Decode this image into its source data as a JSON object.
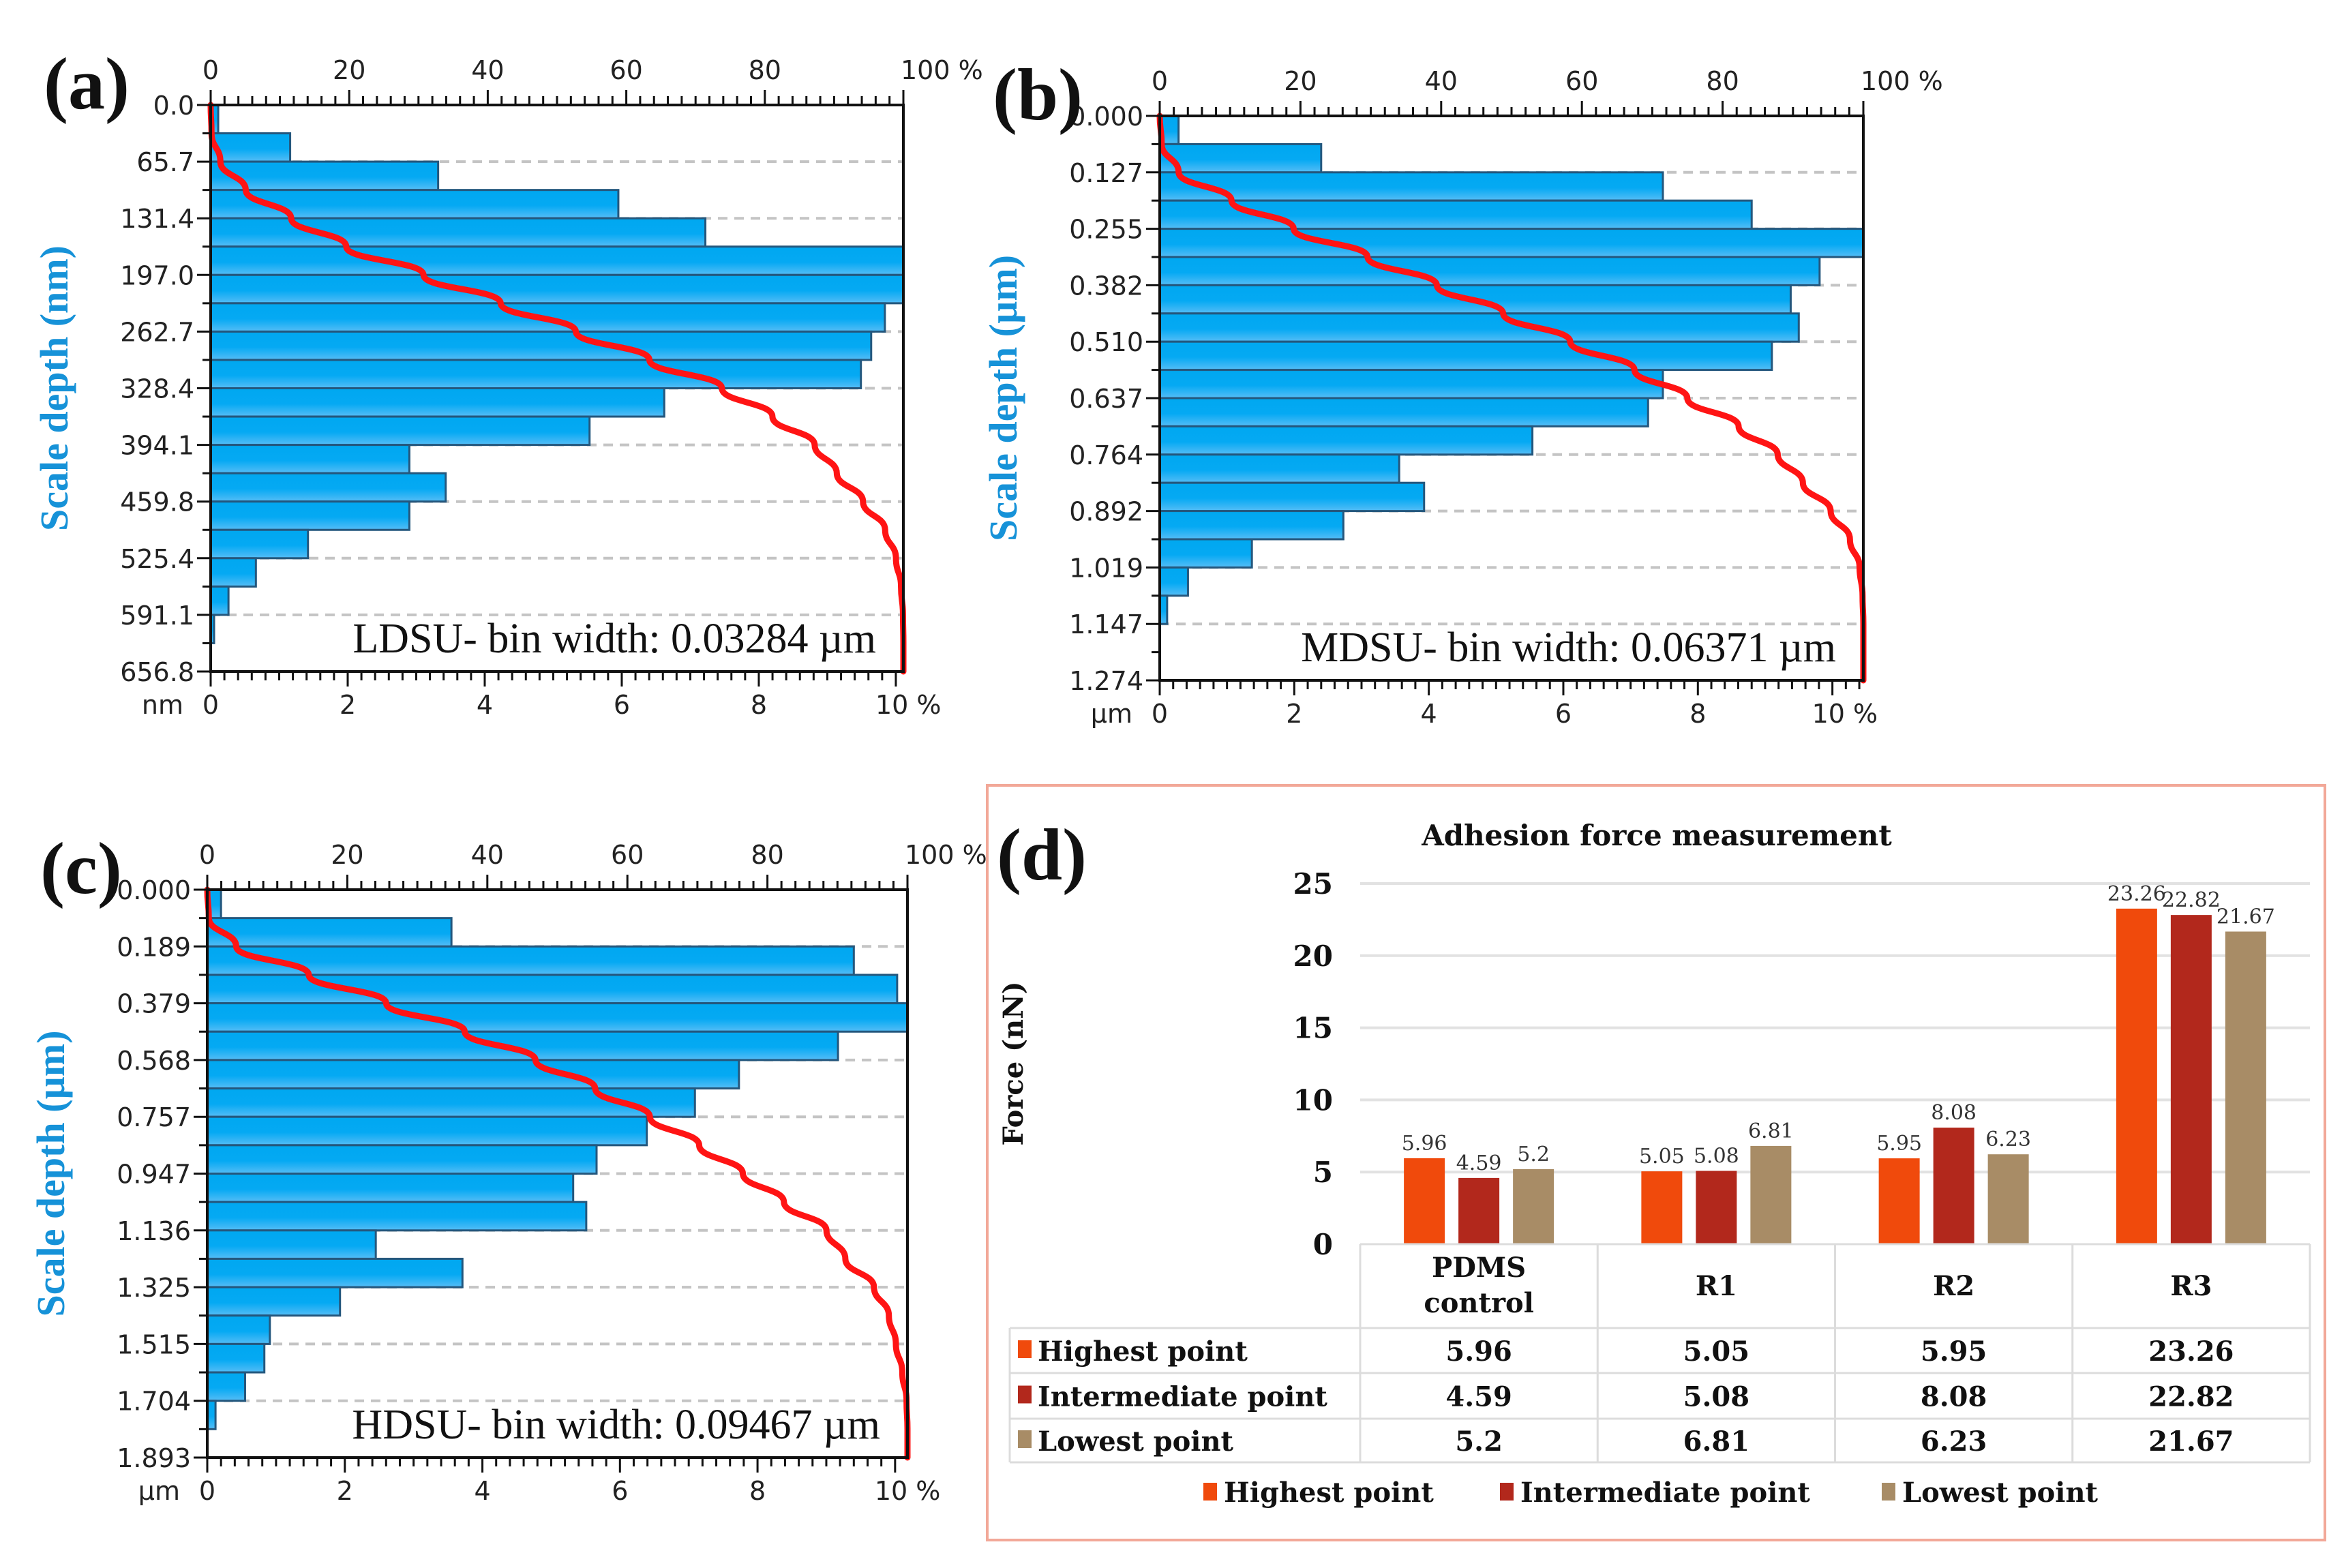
{
  "chart_data": [
    {
      "type": "bar",
      "orientation": "horizontal-histogram",
      "panel_label": "(a)",
      "ylabel": "Scale depth (nm)",
      "unit_label": "nm",
      "annotation": "LDSU- bin width: 0.03284 µm",
      "y_ticks": [
        "0.0",
        "65.7",
        "131.4",
        "197.0",
        "262.7",
        "328.4",
        "394.1",
        "459.8",
        "525.4",
        "591.1",
        "656.8"
      ],
      "top_ticks": [
        "0",
        "20",
        "40",
        "60",
        "80",
        "100 %"
      ],
      "bottom_ticks": [
        "0",
        "2",
        "4",
        "6",
        "8",
        "10 %"
      ],
      "x_max_percent": 10.11,
      "bins_percent": [
        0.11,
        1.16,
        3.32,
        5.95,
        7.22,
        10.11,
        10.11,
        9.84,
        9.64,
        9.49,
        6.62,
        5.53,
        2.9,
        3.43,
        2.9,
        1.42,
        0.66,
        0.26,
        0.05,
        0
      ],
      "series": [
        {
          "name": "histogram",
          "color": "#06a9f2"
        },
        {
          "name": "cumulative",
          "color": "#ff1414"
        }
      ]
    },
    {
      "type": "bar",
      "orientation": "horizontal-histogram",
      "panel_label": "(b)",
      "ylabel": "Scale depth (µm)",
      "unit_label": "µm",
      "annotation": "MDSU- bin width: 0.06371 µm",
      "y_ticks": [
        "0.000",
        "0.127",
        "0.255",
        "0.382",
        "0.510",
        "0.637",
        "0.764",
        "0.892",
        "1.019",
        "1.147",
        "1.274"
      ],
      "top_ticks": [
        "0",
        "20",
        "40",
        "60",
        "80",
        "100 %"
      ],
      "bottom_ticks": [
        "0",
        "2",
        "4",
        "6",
        "8",
        "10 %"
      ],
      "x_max_percent": 10.46,
      "bins_percent": [
        0.28,
        2.4,
        7.48,
        8.8,
        10.46,
        9.81,
        9.38,
        9.5,
        9.1,
        7.48,
        7.26,
        5.54,
        3.56,
        3.93,
        2.73,
        1.37,
        0.42,
        0.11,
        0,
        0
      ],
      "series": [
        {
          "name": "histogram",
          "color": "#06a9f2"
        },
        {
          "name": "cumulative",
          "color": "#ff1414"
        }
      ]
    },
    {
      "type": "bar",
      "orientation": "horizontal-histogram",
      "panel_label": "(c)",
      "ylabel": "Scale depth (µm)",
      "unit_label": "µm",
      "annotation": "HDSU- bin width: 0.09467 µm",
      "y_ticks": [
        "0.000",
        "0.189",
        "0.379",
        "0.568",
        "0.757",
        "0.947",
        "1.136",
        "1.325",
        "1.515",
        "1.704",
        "1.893"
      ],
      "top_ticks": [
        "0",
        "20",
        "40",
        "60",
        "80",
        "100 %"
      ],
      "bottom_ticks": [
        "0",
        "2",
        "4",
        "6",
        "8",
        "10 %"
      ],
      "x_max_percent": 10.18,
      "bins_percent": [
        0.2,
        3.55,
        9.4,
        10.03,
        10.18,
        9.17,
        7.73,
        7.09,
        6.39,
        5.66,
        5.32,
        5.51,
        2.45,
        3.71,
        1.93,
        0.91,
        0.83,
        0.55,
        0.12,
        0
      ],
      "series": [
        {
          "name": "histogram",
          "color": "#06a9f2"
        },
        {
          "name": "cumulative",
          "color": "#ff1414"
        }
      ]
    },
    {
      "type": "bar",
      "panel_label": "(d)",
      "title": "Adhesion force measurement",
      "ylabel": "Force (nN)",
      "xlabel": "",
      "ylim": [
        0,
        25
      ],
      "y_ticks": [
        "0",
        "5",
        "10",
        "15",
        "20",
        "25"
      ],
      "categories": [
        "PDMS control",
        "R1",
        "R2",
        "R3"
      ],
      "series": [
        {
          "name": "Highest point",
          "color": "#f04a0c",
          "values": [
            5.96,
            5.05,
            5.95,
            23.26
          ],
          "labels": [
            "5.96",
            "5.05",
            "5.95",
            "23.26"
          ]
        },
        {
          "name": "Intermediate point",
          "color": "#b2281c",
          "values": [
            4.59,
            5.08,
            8.08,
            22.82
          ],
          "labels": [
            "4.59",
            "5.08",
            "8.08",
            "22.82"
          ]
        },
        {
          "name": "Lowest point",
          "color": "#a88c66",
          "values": [
            5.2,
            6.81,
            6.23,
            21.67
          ],
          "labels": [
            "5.2",
            "6.81",
            "6.23",
            "21.67"
          ]
        }
      ],
      "legend": "bottom",
      "grid": true
    }
  ]
}
